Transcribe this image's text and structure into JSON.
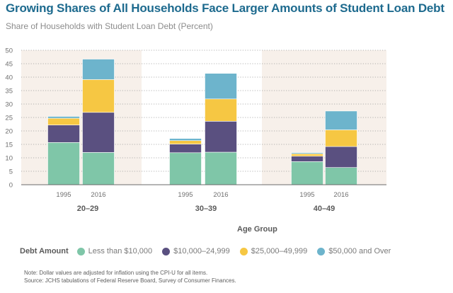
{
  "title": "Growing Shares of All Households Face Larger Amounts of Student Loan Debt",
  "subtitle": "Share of Households with Student Loan Debt (Percent)",
  "legend_title": "Debt Amount",
  "notes": {
    "note": "Note: Dollar values are adjusted for inflation using the CPI-U for all items.",
    "source": "Source: JCHS tabulations of Federal Reserve Board, Survey of Consumer Finances."
  },
  "chart_data": {
    "type": "bar",
    "stacked": true,
    "xlabel": "Age Group",
    "ylabel": "",
    "ylim": [
      0,
      50
    ],
    "yticks": [
      "0",
      "5",
      "10",
      "15",
      "20",
      "25",
      "30",
      "35",
      "40",
      "45",
      "50"
    ],
    "groups": [
      "20–29",
      "30–39",
      "40–49"
    ],
    "categories": [
      "1995",
      "2016"
    ],
    "grid": true,
    "legend_position": "bottom",
    "series": [
      {
        "name": "Less than $10,000",
        "color": "#7fc6a8",
        "values": [
          [
            15.7,
            12.0
          ],
          [
            11.9,
            12.1
          ],
          [
            8.6,
            6.4
          ]
        ]
      },
      {
        "name": "$10,000–24,999",
        "color": "#5a5080",
        "values": [
          [
            6.5,
            14.9
          ],
          [
            3.2,
            11.5
          ],
          [
            2.0,
            7.8
          ]
        ]
      },
      {
        "name": "$25,000–49,999",
        "color": "#f6c743",
        "values": [
          [
            2.5,
            12.2
          ],
          [
            1.3,
            8.3
          ],
          [
            0.9,
            6.2
          ]
        ]
      },
      {
        "name": "$50,000 and Over",
        "color": "#6db4cc",
        "values": [
          [
            0.7,
            7.6
          ],
          [
            0.8,
            9.5
          ],
          [
            0.4,
            7.0
          ]
        ]
      }
    ]
  }
}
